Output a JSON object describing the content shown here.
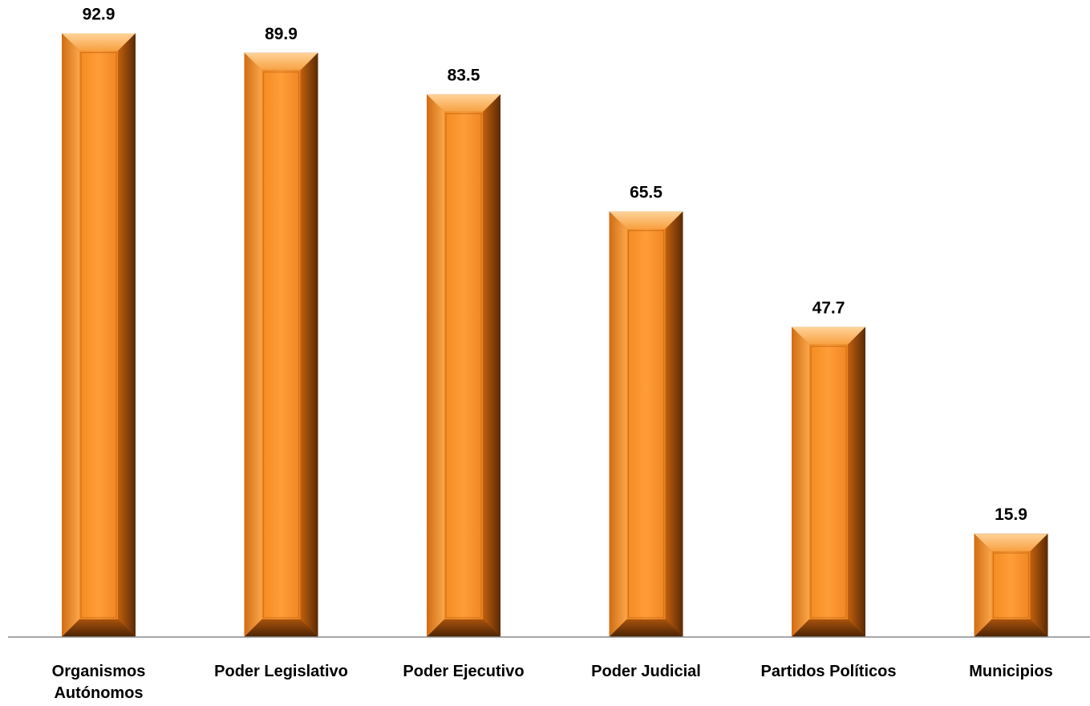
{
  "chart_data": {
    "type": "bar",
    "categories": [
      [
        "Organismos",
        "Autónomos"
      ],
      [
        "Poder Legislativo"
      ],
      [
        "Poder Ejecutivo"
      ],
      [
        "Poder Judicial"
      ],
      [
        "Partidos Políticos"
      ],
      [
        "Municipios"
      ]
    ],
    "values": [
      92.9,
      89.9,
      83.5,
      65.5,
      47.7,
      15.9
    ],
    "value_labels": [
      "92.9",
      "89.9",
      "83.5",
      "65.5",
      "47.7",
      "15.9"
    ],
    "ylim": [
      0,
      100
    ],
    "grid": false,
    "legend": "none",
    "colors": {
      "bar_fill": "#f7942d",
      "bar_light": "#ffb35c",
      "bar_dark": "#6b3306",
      "axis": "#8c8c8c"
    }
  }
}
